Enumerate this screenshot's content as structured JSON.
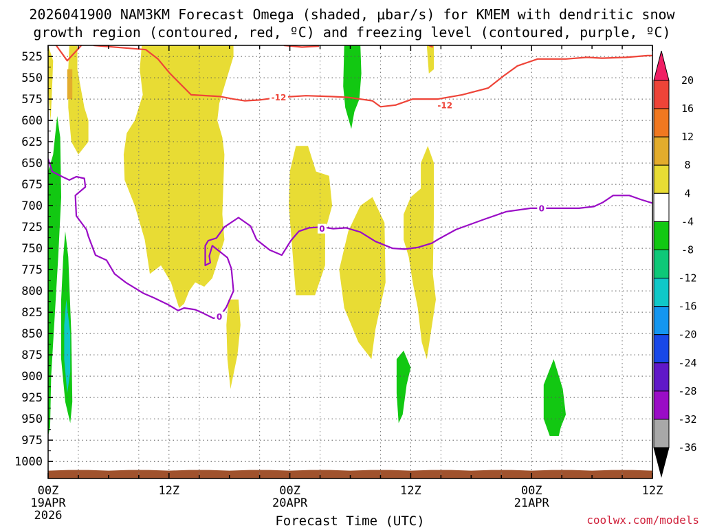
{
  "chart_data": {
    "type": "time-height cross section",
    "title_line1": "2026041900 NAM3KM Forecast Omega (shaded, μbar/s) for KMEM with dendritic snow",
    "title_line2": "growth region (contoured, red, ºC) and freezing level (contoured, purple, ºC)",
    "xlabel": "Forecast Time (UTC)",
    "credit": "coolwx.com/models",
    "x_range_hours": [
      0,
      60
    ],
    "y_range_hpa": [
      1020,
      512
    ],
    "y_ticks": [
      525,
      550,
      575,
      600,
      625,
      650,
      675,
      700,
      725,
      750,
      775,
      800,
      825,
      850,
      875,
      900,
      925,
      950,
      975,
      1000
    ],
    "x_ticks": [
      {
        "hour": 0,
        "lines": [
          "00Z",
          "19APR",
          "2026"
        ]
      },
      {
        "hour": 12,
        "lines": [
          "12Z"
        ]
      },
      {
        "hour": 24,
        "lines": [
          "00Z",
          "20APR"
        ]
      },
      {
        "hour": 36,
        "lines": [
          "12Z"
        ]
      },
      {
        "hour": 48,
        "lines": [
          "00Z",
          "21APR"
        ]
      },
      {
        "hour": 60,
        "lines": [
          "12Z"
        ]
      }
    ],
    "colorbar": {
      "labels": [
        "20",
        "16",
        "12",
        "8",
        "4",
        "-4",
        "-8",
        "-12",
        "-16",
        "-20",
        "-24",
        "-28",
        "-32",
        "-36"
      ],
      "colors": [
        "#f01e64",
        "#ee4438",
        "#f07820",
        "#e3ac2c",
        "#e8dc34",
        "#ffffff",
        "#12c812",
        "#0ec878",
        "#10c8c8",
        "#1496f0",
        "#1848e8",
        "#6018c8",
        "#9a0cc6",
        "#a8a8a8",
        "#000000"
      ]
    },
    "omega_regions": [
      {
        "name": "upward-1",
        "color": "#e8dc34",
        "points": [
          [
            0.0,
            512
          ],
          [
            0.5,
            530
          ],
          [
            0.4,
            560
          ],
          [
            0.25,
            600
          ],
          [
            0.1,
            580
          ],
          [
            0.0,
            560
          ]
        ]
      },
      {
        "name": "upward-2",
        "color": "#e8dc34",
        "points": [
          [
            2.1,
            512
          ],
          [
            2.9,
            512
          ],
          [
            2.9,
            540
          ],
          [
            3.6,
            585
          ],
          [
            4.0,
            600
          ],
          [
            4.0,
            625
          ],
          [
            3.0,
            640
          ],
          [
            2.3,
            625
          ],
          [
            2.0,
            585
          ],
          [
            2.0,
            540
          ]
        ]
      },
      {
        "name": "upward-3",
        "color": "#e3ac2c",
        "points": [
          [
            1.9,
            540
          ],
          [
            2.4,
            540
          ],
          [
            2.4,
            575
          ],
          [
            1.9,
            575
          ]
        ]
      },
      {
        "name": "upward-4",
        "color": "#e8dc34",
        "points": [
          [
            9.3,
            512
          ],
          [
            18.4,
            512
          ],
          [
            18.4,
            525
          ],
          [
            17.5,
            560
          ],
          [
            17.0,
            580
          ],
          [
            16.8,
            600
          ],
          [
            17.3,
            620
          ],
          [
            17.5,
            640
          ],
          [
            17.4,
            675
          ],
          [
            17.3,
            710
          ],
          [
            17.5,
            740
          ],
          [
            16.3,
            785
          ],
          [
            15.5,
            795
          ],
          [
            14.6,
            790
          ],
          [
            14.0,
            800
          ],
          [
            13.5,
            815
          ],
          [
            13.0,
            820
          ],
          [
            12.2,
            790
          ],
          [
            11.2,
            770
          ],
          [
            10.1,
            780
          ],
          [
            9.6,
            740
          ],
          [
            8.6,
            700
          ],
          [
            7.6,
            670
          ],
          [
            7.5,
            640
          ],
          [
            7.8,
            615
          ],
          [
            8.6,
            600
          ],
          [
            9.4,
            570
          ],
          [
            9.1,
            540
          ]
        ]
      },
      {
        "name": "upward-5",
        "color": "#e8dc34",
        "points": [
          [
            17.9,
            810
          ],
          [
            18.9,
            810
          ],
          [
            19.1,
            840
          ],
          [
            18.8,
            875
          ],
          [
            18.1,
            915
          ],
          [
            17.8,
            880
          ],
          [
            17.7,
            840
          ]
        ]
      },
      {
        "name": "upward-6",
        "color": "#e8dc34",
        "points": [
          [
            24.6,
            630
          ],
          [
            25.8,
            630
          ],
          [
            26.6,
            660
          ],
          [
            27.9,
            665
          ],
          [
            28.2,
            700
          ],
          [
            27.5,
            730
          ],
          [
            27.5,
            770
          ],
          [
            26.5,
            805
          ],
          [
            24.6,
            805
          ],
          [
            24.3,
            760
          ],
          [
            23.9,
            700
          ],
          [
            24.0,
            660
          ]
        ]
      },
      {
        "name": "upward-7",
        "color": "#e8dc34",
        "points": [
          [
            32.2,
            690
          ],
          [
            33.4,
            720
          ],
          [
            33.5,
            790
          ],
          [
            32.5,
            845
          ],
          [
            32.1,
            880
          ],
          [
            30.8,
            860
          ],
          [
            29.4,
            820
          ],
          [
            28.9,
            775
          ],
          [
            29.8,
            730
          ],
          [
            31.0,
            700
          ]
        ]
      },
      {
        "name": "upward-8",
        "color": "#e8dc34",
        "points": [
          [
            37.7,
            630
          ],
          [
            38.3,
            650
          ],
          [
            38.3,
            710
          ],
          [
            38.2,
            780
          ],
          [
            38.5,
            810
          ],
          [
            37.6,
            880
          ],
          [
            37.1,
            860
          ],
          [
            36.7,
            820
          ],
          [
            36.2,
            790
          ],
          [
            35.8,
            760
          ],
          [
            35.3,
            740
          ],
          [
            35.3,
            710
          ],
          [
            36.0,
            690
          ],
          [
            37.0,
            680
          ],
          [
            37.0,
            650
          ]
        ]
      },
      {
        "name": "upward-9",
        "color": "#e8dc34",
        "points": [
          [
            37.6,
            512
          ],
          [
            38.3,
            512
          ],
          [
            38.3,
            540
          ],
          [
            37.8,
            545
          ]
        ]
      },
      {
        "name": "downward-1",
        "color": "#12c812",
        "points": [
          [
            29.4,
            512
          ],
          [
            31.0,
            512
          ],
          [
            31.1,
            545
          ],
          [
            30.9,
            575
          ],
          [
            30.4,
            590
          ],
          [
            30.1,
            610
          ],
          [
            29.5,
            585
          ],
          [
            29.3,
            560
          ]
        ]
      },
      {
        "name": "downward-2",
        "color": "#12c812",
        "points": [
          [
            0.9,
            595
          ],
          [
            1.2,
            620
          ],
          [
            1.3,
            690
          ],
          [
            1.0,
            760
          ],
          [
            0.7,
            820
          ],
          [
            0.3,
            900
          ],
          [
            0.2,
            960
          ],
          [
            0.0,
            970
          ],
          [
            0.0,
            660
          ],
          [
            0.5,
            640
          ]
        ]
      },
      {
        "name": "downward-3",
        "color": "#12c812",
        "points": [
          [
            1.7,
            730
          ],
          [
            2.0,
            760
          ],
          [
            2.3,
            850
          ],
          [
            2.4,
            930
          ],
          [
            2.2,
            955
          ],
          [
            1.7,
            930
          ],
          [
            1.3,
            880
          ],
          [
            1.3,
            810
          ],
          [
            1.5,
            760
          ]
        ]
      },
      {
        "name": "downward-4",
        "color": "#10c8c8",
        "points": [
          [
            1.8,
            810
          ],
          [
            2.2,
            850
          ],
          [
            2.2,
            895
          ],
          [
            1.9,
            920
          ],
          [
            1.6,
            880
          ],
          [
            1.6,
            840
          ]
        ]
      },
      {
        "name": "downward-5",
        "color": "#12c812",
        "points": [
          [
            35.3,
            870
          ],
          [
            36.0,
            890
          ],
          [
            35.6,
            910
          ],
          [
            35.2,
            945
          ],
          [
            34.8,
            955
          ],
          [
            34.6,
            920
          ],
          [
            34.6,
            880
          ]
        ]
      },
      {
        "name": "downward-6",
        "color": "#12c812",
        "points": [
          [
            50.2,
            880
          ],
          [
            51.1,
            915
          ],
          [
            51.4,
            945
          ],
          [
            50.9,
            960
          ],
          [
            50.7,
            970
          ],
          [
            49.8,
            970
          ],
          [
            49.2,
            950
          ],
          [
            49.2,
            910
          ]
        ]
      }
    ],
    "terrain": {
      "color": "#a0522d",
      "top_hpa": 1010
    },
    "dendritic_contour": {
      "color": "#ee4438",
      "segments": [
        [
          [
            0.8,
            512
          ],
          [
            1.9,
            530
          ],
          [
            3.3,
            512
          ]
        ],
        [
          [
            4.5,
            512
          ],
          [
            9.7,
            517
          ],
          [
            10.9,
            528
          ],
          [
            12.1,
            545
          ],
          [
            14.2,
            570
          ],
          [
            17.1,
            572
          ],
          [
            18.4,
            575
          ],
          [
            19.5,
            577
          ],
          [
            21.0,
            576
          ],
          [
            22.9,
            573
          ],
          [
            25.6,
            571
          ],
          [
            28.1,
            572
          ],
          [
            29.8,
            573
          ],
          [
            32.2,
            577
          ],
          [
            33.0,
            584
          ],
          [
            34.5,
            582
          ],
          [
            36.2,
            575
          ],
          [
            38.7,
            575
          ],
          [
            41.1,
            570
          ],
          [
            43.7,
            562
          ],
          [
            45.2,
            548
          ],
          [
            46.6,
            536
          ],
          [
            48.6,
            528
          ],
          [
            51.4,
            528
          ],
          [
            53.5,
            526
          ],
          [
            55.0,
            527
          ],
          [
            57.4,
            526
          ],
          [
            59.5,
            524
          ],
          [
            60.0,
            524
          ]
        ],
        [
          [
            23.4,
            512
          ],
          [
            25.2,
            514
          ],
          [
            26.9,
            513
          ]
        ],
        [
          [
            37.8,
            512
          ],
          [
            38.2,
            514
          ]
        ]
      ],
      "labels": [
        {
          "text": "-12",
          "hour": 22.9,
          "hpa": 573
        },
        {
          "text": "-12",
          "hour": 39.4,
          "hpa": 582
        }
      ]
    },
    "freezing_contour": {
      "color": "#9a0cc6",
      "segments": [
        [
          [
            0.0,
            645
          ],
          [
            0.4,
            660
          ],
          [
            1.4,
            666
          ],
          [
            2.1,
            670
          ],
          [
            2.8,
            666
          ],
          [
            3.6,
            668
          ],
          [
            3.7,
            678
          ],
          [
            2.7,
            688
          ],
          [
            2.8,
            712
          ],
          [
            3.8,
            728
          ],
          [
            4.0,
            736
          ],
          [
            4.7,
            758
          ],
          [
            5.8,
            764
          ],
          [
            6.6,
            780
          ],
          [
            7.7,
            790
          ],
          [
            9.5,
            803
          ],
          [
            10.5,
            808
          ],
          [
            11.9,
            816
          ],
          [
            12.9,
            823
          ],
          [
            13.5,
            820
          ],
          [
            14.6,
            822
          ],
          [
            15.2,
            825
          ],
          [
            16.4,
            832
          ],
          [
            17.0,
            831
          ],
          [
            17.7,
            819
          ],
          [
            18.4,
            800
          ],
          [
            18.2,
            774
          ],
          [
            17.8,
            761
          ],
          [
            16.3,
            747
          ],
          [
            16.0,
            759
          ],
          [
            16.1,
            767
          ],
          [
            15.6,
            770
          ],
          [
            15.6,
            747
          ],
          [
            15.9,
            741
          ],
          [
            16.7,
            738
          ],
          [
            17.5,
            725
          ],
          [
            18.9,
            714
          ],
          [
            20.1,
            724
          ],
          [
            20.7,
            740
          ],
          [
            22.0,
            752
          ],
          [
            23.2,
            758
          ],
          [
            24.1,
            741
          ],
          [
            24.9,
            730
          ],
          [
            25.9,
            726
          ],
          [
            27.2,
            725
          ],
          [
            28.3,
            727
          ],
          [
            29.6,
            726
          ],
          [
            31.0,
            731
          ],
          [
            32.5,
            742
          ],
          [
            34.2,
            750
          ],
          [
            35.4,
            751
          ],
          [
            36.7,
            749
          ],
          [
            38.1,
            744
          ],
          [
            38.8,
            739
          ],
          [
            40.5,
            728
          ],
          [
            43.3,
            716
          ],
          [
            45.5,
            707
          ],
          [
            47.9,
            703
          ],
          [
            50.5,
            703
          ],
          [
            52.7,
            703
          ],
          [
            54.2,
            701
          ],
          [
            55.1,
            696
          ],
          [
            56.1,
            688
          ],
          [
            57.7,
            688
          ],
          [
            58.9,
            693
          ],
          [
            60.0,
            697
          ]
        ]
      ],
      "labels": [
        {
          "text": "0",
          "hour": 17.0,
          "hpa": 830
        },
        {
          "text": "0",
          "hour": 27.2,
          "hpa": 727
        },
        {
          "text": "0",
          "hour": 49.0,
          "hpa": 703
        }
      ]
    }
  }
}
